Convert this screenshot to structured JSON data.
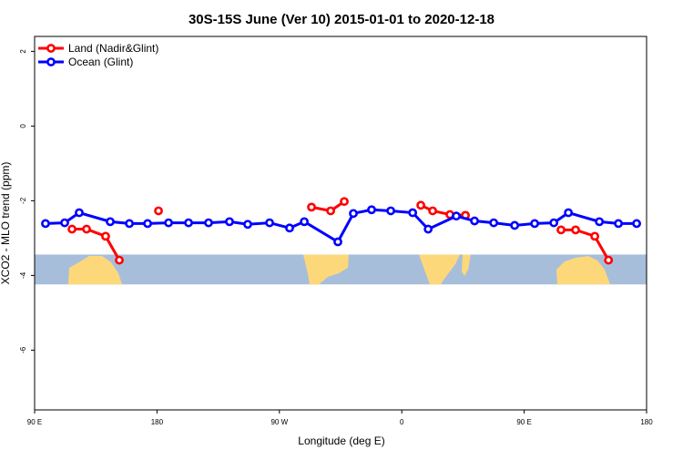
{
  "chart_data": {
    "type": "line",
    "title": "30S-15S June (Ver 10)   2015-01-01 to 2020-12-18",
    "xlabel": "Longitude (deg E)",
    "ylabel": "XCO2 - MLO trend (ppm)",
    "xlim": [
      90,
      540
    ],
    "ylim": [
      -7.6,
      2.4
    ],
    "x_ticks": [
      90,
      180,
      270,
      360,
      450,
      540
    ],
    "x_tick_labels": [
      "90 E",
      "180",
      "90 W",
      "0",
      "90 E",
      "180"
    ],
    "y_ticks": [
      2,
      0,
      -2,
      -4,
      -6
    ],
    "y_tick_labels": [
      "2",
      "0",
      "-2",
      "-4",
      "-6"
    ],
    "grid": false,
    "legend_position": "top-left",
    "series": [
      {
        "name": "Land (Nadir&Glint)",
        "color": "#ff0000",
        "segments": [
          [
            [
              117.5,
              -2.76
            ],
            [
              128.2,
              -2.76
            ],
            [
              142.2,
              -2.95
            ],
            [
              152.3,
              -3.59
            ]
          ],
          [
            [
              181.1,
              -2.27
            ]
          ],
          [
            [
              293.6,
              -2.17
            ],
            [
              307.7,
              -2.27
            ],
            [
              317.7,
              -2.02
            ]
          ],
          [
            [
              374.0,
              -2.12
            ],
            [
              382.7,
              -2.27
            ],
            [
              395.4,
              -2.37
            ],
            [
              406.8,
              -2.39
            ]
          ],
          [
            [
              477.1,
              -2.78
            ],
            [
              487.8,
              -2.78
            ],
            [
              501.9,
              -2.95
            ],
            [
              512.0,
              -3.59
            ]
          ]
        ]
      },
      {
        "name": "Ocean (Glint)",
        "color": "#0000ff",
        "segments": [
          [
            [
              98.0,
              -2.61
            ],
            [
              112.1,
              -2.59
            ],
            [
              122.8,
              -2.32
            ],
            [
              145.6,
              -2.56
            ],
            [
              159.7,
              -2.61
            ],
            [
              173.1,
              -2.61
            ],
            [
              188.5,
              -2.59
            ],
            [
              203.2,
              -2.59
            ],
            [
              217.9,
              -2.59
            ],
            [
              233.3,
              -2.56
            ],
            [
              246.7,
              -2.63
            ],
            [
              262.8,
              -2.59
            ],
            [
              277.5,
              -2.73
            ],
            [
              288.3,
              -2.56
            ],
            [
              313.0,
              -3.1
            ],
            [
              324.4,
              -2.34
            ],
            [
              337.8,
              -2.24
            ],
            [
              351.9,
              -2.27
            ],
            [
              368.0,
              -2.32
            ],
            [
              379.4,
              -2.76
            ],
            [
              400.1,
              -2.41
            ],
            [
              413.5,
              -2.54
            ],
            [
              427.6,
              -2.59
            ],
            [
              443.0,
              -2.66
            ],
            [
              457.7,
              -2.61
            ],
            [
              471.8,
              -2.59
            ],
            [
              482.5,
              -2.32
            ],
            [
              505.3,
              -2.56
            ],
            [
              519.3,
              -2.61
            ],
            [
              532.7,
              -2.61
            ]
          ]
        ]
      }
    ],
    "map_band": {
      "ymin": -4.24,
      "ymax": -3.44,
      "ocean_color": "#a7bedb",
      "land_color": "#fdd87a"
    }
  }
}
